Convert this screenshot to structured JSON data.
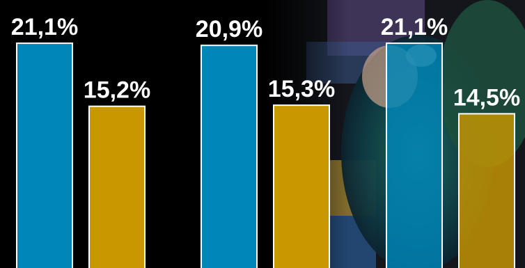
{
  "chart_data": {
    "type": "bar",
    "categories": [
      "",
      "",
      ""
    ],
    "series": [
      {
        "values": [
          21.1,
          20.9,
          21.1
        ],
        "labels": [
          "21,1%",
          "20,9%",
          "21,1%"
        ]
      },
      {
        "values": [
          15.2,
          15.3,
          14.5
        ],
        "labels": [
          "15,2%",
          "15,3%",
          "14,5%"
        ]
      }
    ],
    "title": "",
    "xlabel": "",
    "ylabel": "",
    "grid": false,
    "colors": [
      "#0086b8",
      "#c99700"
    ],
    "label_color": "#ffffff",
    "background": "#000000"
  }
}
